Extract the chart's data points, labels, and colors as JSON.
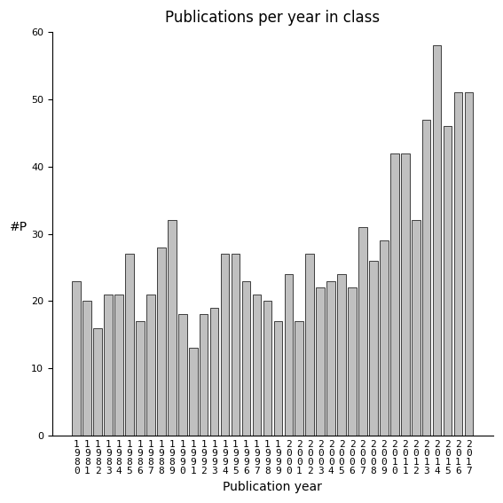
{
  "title": "Publications per year in class",
  "xlabel": "Publication year",
  "ylabel": "#P",
  "years": [
    1980,
    1981,
    1982,
    1983,
    1984,
    1985,
    1986,
    1987,
    1988,
    1989,
    1990,
    1991,
    1992,
    1993,
    1994,
    1995,
    1996,
    1997,
    1998,
    1999,
    2000,
    2001,
    2002,
    2003,
    2004,
    2005,
    2006,
    2007,
    2008,
    2009,
    2010,
    2011,
    2012,
    2013,
    2014,
    2015,
    2016,
    2017
  ],
  "values": [
    23,
    20,
    16,
    21,
    21,
    27,
    17,
    21,
    28,
    32,
    18,
    13,
    18,
    19,
    27,
    27,
    23,
    21,
    20,
    17,
    24,
    17,
    27,
    22,
    23,
    24,
    22,
    31,
    26,
    29,
    42,
    42,
    32,
    47,
    58,
    46,
    51,
    51
  ],
  "bar_color": "#c0c0c0",
  "bar_edgecolor": "#000000",
  "ylim": [
    0,
    60
  ],
  "yticks": [
    0,
    10,
    20,
    30,
    40,
    50,
    60
  ],
  "bg_color": "#ffffff",
  "title_fontsize": 12,
  "axis_fontsize": 10,
  "tick_fontsize": 8
}
